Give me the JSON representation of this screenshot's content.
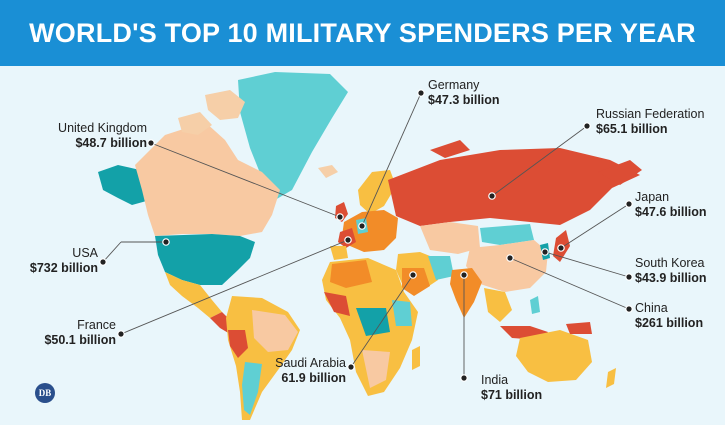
{
  "title": "WORLD'S TOP 10 MILITARY SPENDERS PER YEAR",
  "colors": {
    "banner": "#1a8fd5",
    "ocean": "#e9f6fb",
    "peach": "#f8c9a2",
    "teal": "#13a1a8",
    "orange_red": "#dc4d34",
    "yellow": "#f8bf42",
    "orange": "#f28c28",
    "light_teal": "#5fcfd3",
    "light_peach": "#f6cfa8"
  },
  "icons": {
    "logo": "publisher-logo-icon"
  },
  "logo_text": "DB",
  "countries": [
    {
      "name": "USA",
      "value": "$732 billion"
    },
    {
      "name": "United Kingdom",
      "value": "$48.7 billion"
    },
    {
      "name": "Germany",
      "value": "$47.3 billion"
    },
    {
      "name": "Russian Federation",
      "value": "$65.1 billion"
    },
    {
      "name": "Japan",
      "value": "$47.6 billion"
    },
    {
      "name": "South Korea",
      "value": "$43.9 billion"
    },
    {
      "name": "China",
      "value": "$261 billion"
    },
    {
      "name": "France",
      "value": "$50.1 billion"
    },
    {
      "name": "Saudi Arabia",
      "value": "61.9 billion"
    },
    {
      "name": "India",
      "value": "$71 billion"
    }
  ]
}
